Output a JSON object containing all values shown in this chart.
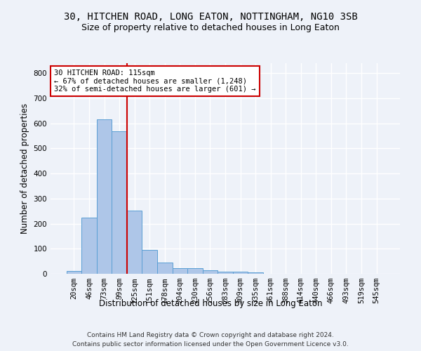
{
  "title1": "30, HITCHEN ROAD, LONG EATON, NOTTINGHAM, NG10 3SB",
  "title2": "Size of property relative to detached houses in Long Eaton",
  "xlabel": "Distribution of detached houses by size in Long Eaton",
  "ylabel": "Number of detached properties",
  "bar_labels": [
    "20sqm",
    "46sqm",
    "73sqm",
    "99sqm",
    "125sqm",
    "151sqm",
    "178sqm",
    "204sqm",
    "230sqm",
    "256sqm",
    "283sqm",
    "309sqm",
    "335sqm",
    "361sqm",
    "388sqm",
    "414sqm",
    "440sqm",
    "466sqm",
    "493sqm",
    "519sqm",
    "545sqm"
  ],
  "bar_values": [
    10,
    225,
    615,
    568,
    252,
    95,
    45,
    22,
    22,
    14,
    8,
    8,
    6,
    0,
    0,
    0,
    0,
    0,
    0,
    0,
    0
  ],
  "bar_color": "#aec6e8",
  "bar_edge_color": "#5a9fd4",
  "bar_width": 1.0,
  "vline_color": "#cc0000",
  "annotation_line1": "30 HITCHEN ROAD: 115sqm",
  "annotation_line2": "← 67% of detached houses are smaller (1,248)",
  "annotation_line3": "32% of semi-detached houses are larger (601) →",
  "ylim": [
    0,
    840
  ],
  "yticks": [
    0,
    100,
    200,
    300,
    400,
    500,
    600,
    700,
    800
  ],
  "footer1": "Contains HM Land Registry data © Crown copyright and database right 2024.",
  "footer2": "Contains public sector information licensed under the Open Government Licence v3.0.",
  "bg_color": "#eef2f9",
  "grid_color": "#ffffff",
  "title_fontsize": 10,
  "subtitle_fontsize": 9,
  "tick_fontsize": 7.5,
  "footer_fontsize": 6.5
}
